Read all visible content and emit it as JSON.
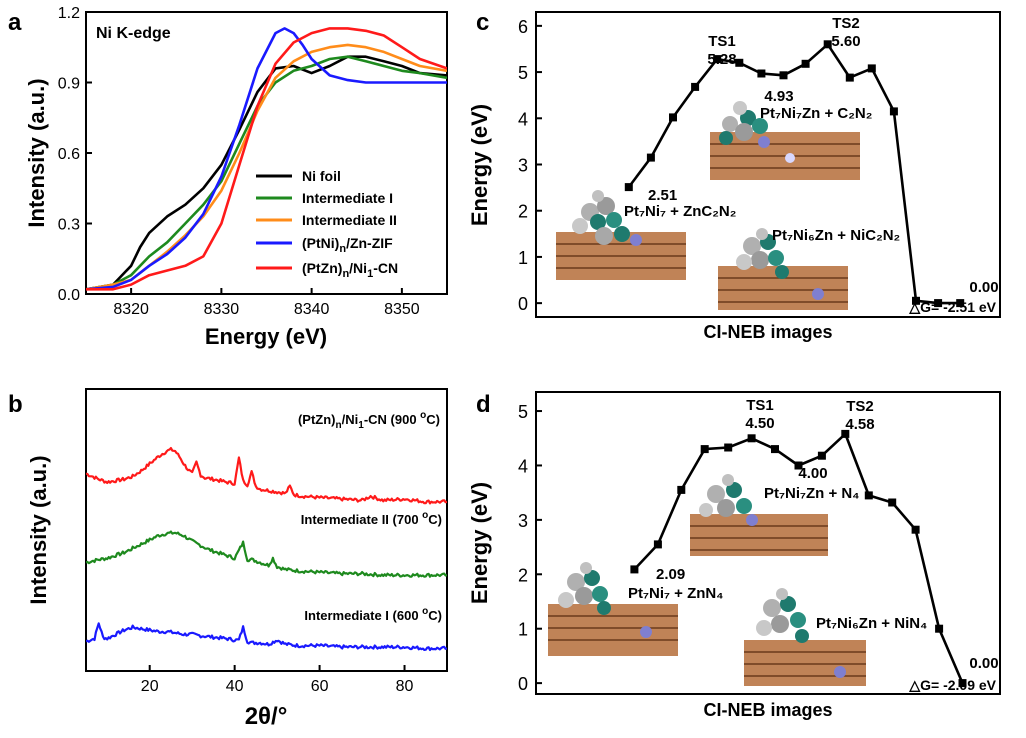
{
  "chart_data": [
    {
      "id": "a",
      "panel": "a",
      "type": "line",
      "annotation": "Ni K-edge",
      "xlabel": "Energy (eV)",
      "ylabel": "Intensity (a.u.)",
      "xlim": [
        8315,
        8355
      ],
      "ylim": [
        0,
        1.2
      ],
      "xticks": [
        "8320",
        "8330",
        "8340",
        "8350"
      ],
      "yticks": [
        "0.0",
        "0.3",
        "0.6",
        "0.9",
        "1.2"
      ],
      "legend_position": "bottom-right",
      "series": [
        {
          "name": "Ni foil",
          "color": "#000000",
          "x": [
            8315,
            8318,
            8320,
            8321,
            8322,
            8324,
            8326,
            8328,
            8330,
            8332,
            8334,
            8336,
            8338,
            8340,
            8342,
            8344,
            8346,
            8348,
            8350,
            8352,
            8355
          ],
          "y": [
            0.02,
            0.04,
            0.12,
            0.2,
            0.26,
            0.33,
            0.38,
            0.45,
            0.55,
            0.7,
            0.86,
            0.96,
            0.97,
            0.94,
            0.97,
            1.01,
            1.01,
            0.99,
            0.97,
            0.94,
            0.93
          ]
        },
        {
          "name": "Intermediate I",
          "color": "#1e8a1e",
          "x": [
            8315,
            8318,
            8320,
            8322,
            8324,
            8326,
            8328,
            8330,
            8332,
            8334,
            8336,
            8338,
            8340,
            8342,
            8344,
            8346,
            8348,
            8350,
            8352,
            8355
          ],
          "y": [
            0.02,
            0.04,
            0.08,
            0.16,
            0.22,
            0.3,
            0.38,
            0.48,
            0.64,
            0.8,
            0.9,
            0.95,
            0.97,
            1.0,
            1.01,
            0.99,
            0.97,
            0.95,
            0.94,
            0.92
          ]
        },
        {
          "name": "Intermediate II",
          "color": "#ff8c1a",
          "x": [
            8315,
            8318,
            8320,
            8322,
            8324,
            8326,
            8328,
            8330,
            8332,
            8334,
            8336,
            8338,
            8340,
            8342,
            8344,
            8346,
            8348,
            8350,
            8352,
            8355
          ],
          "y": [
            0.02,
            0.04,
            0.06,
            0.12,
            0.18,
            0.25,
            0.33,
            0.44,
            0.6,
            0.78,
            0.92,
            0.99,
            1.03,
            1.05,
            1.06,
            1.05,
            1.03,
            1.0,
            0.97,
            0.95
          ]
        },
        {
          "name": "(PtNi)n/Zn-ZIF",
          "color": "#1a1aff",
          "x": [
            8315,
            8318,
            8320,
            8322,
            8324,
            8326,
            8328,
            8330,
            8332,
            8334,
            8336,
            8337,
            8338,
            8339,
            8340,
            8342,
            8344,
            8346,
            8348,
            8350,
            8352,
            8355
          ],
          "y": [
            0.02,
            0.03,
            0.06,
            0.12,
            0.17,
            0.24,
            0.34,
            0.5,
            0.72,
            0.96,
            1.11,
            1.13,
            1.11,
            1.06,
            1.0,
            0.93,
            0.91,
            0.9,
            0.9,
            0.9,
            0.9,
            0.9
          ]
        },
        {
          "name": "(PtZn)n/Ni1-CN",
          "color": "#ff1a1a",
          "x": [
            8315,
            8318,
            8320,
            8322,
            8324,
            8326,
            8328,
            8330,
            8332,
            8334,
            8336,
            8338,
            8340,
            8342,
            8344,
            8346,
            8348,
            8350,
            8352,
            8355
          ],
          "y": [
            0.02,
            0.02,
            0.04,
            0.08,
            0.1,
            0.12,
            0.16,
            0.3,
            0.55,
            0.8,
            0.98,
            1.07,
            1.11,
            1.13,
            1.13,
            1.12,
            1.1,
            1.05,
            1.0,
            0.96
          ]
        }
      ]
    },
    {
      "id": "b",
      "panel": "b",
      "type": "line",
      "xlabel": "2θ/°",
      "ylabel": "Intensity (a.u.)",
      "xlim": [
        5,
        90
      ],
      "xticks": [
        "20",
        "40",
        "60",
        "80"
      ],
      "ylim": [
        0,
        10
      ],
      "series": [
        {
          "name": "(PtZn)n/Ni1-CN (900 °C)",
          "color": "#ff1a1a",
          "x": [
            5,
            8,
            10,
            12,
            14,
            16,
            18,
            20,
            22,
            24,
            25,
            26,
            27,
            28,
            29,
            30,
            31,
            32,
            33,
            35,
            38,
            40,
            41,
            42,
            43,
            44,
            45,
            46,
            48,
            50,
            52,
            53,
            54,
            56,
            60,
            65,
            70,
            72,
            75,
            80,
            85,
            90
          ],
          "y": [
            7.0,
            6.8,
            6.7,
            6.75,
            6.8,
            6.9,
            7.1,
            7.35,
            7.6,
            7.8,
            7.85,
            7.8,
            7.6,
            7.35,
            7.15,
            7.0,
            7.4,
            6.95,
            6.85,
            6.8,
            6.7,
            6.65,
            7.55,
            6.75,
            6.6,
            7.05,
            6.55,
            6.45,
            6.4,
            6.35,
            6.3,
            6.55,
            6.25,
            6.2,
            6.15,
            6.1,
            6.05,
            6.2,
            6.05,
            6.1,
            6.0,
            6.0
          ]
        },
        {
          "name": "Intermediate II (700 °C)",
          "color": "#1e8a1e",
          "x": [
            5,
            8,
            10,
            12,
            14,
            16,
            18,
            20,
            22,
            24,
            26,
            28,
            30,
            32,
            34,
            36,
            38,
            40,
            42,
            43,
            44,
            46,
            48,
            49,
            50,
            52,
            55,
            60,
            65,
            70,
            75,
            80,
            85,
            90
          ],
          "y": [
            3.85,
            3.95,
            4.0,
            4.1,
            4.2,
            4.35,
            4.5,
            4.65,
            4.8,
            4.88,
            4.9,
            4.8,
            4.6,
            4.45,
            4.3,
            4.2,
            4.1,
            4.0,
            4.55,
            3.95,
            3.95,
            3.85,
            3.75,
            4.0,
            3.7,
            3.6,
            3.55,
            3.5,
            3.45,
            3.45,
            3.4,
            3.4,
            3.4,
            3.4
          ]
        },
        {
          "name": "Intermediate I (600 °C)",
          "color": "#1a1aff",
          "x": [
            5,
            7,
            8,
            9,
            10,
            12,
            14,
            16,
            18,
            20,
            22,
            24,
            26,
            28,
            30,
            32,
            35,
            38,
            40,
            41,
            42,
            43,
            44,
            46,
            48,
            50,
            52,
            55,
            60,
            65,
            70,
            75,
            80,
            85,
            90
          ],
          "y": [
            1.05,
            1.15,
            1.7,
            1.2,
            1.15,
            1.3,
            1.45,
            1.55,
            1.5,
            1.45,
            1.4,
            1.4,
            1.35,
            1.3,
            1.3,
            1.25,
            1.2,
            1.15,
            1.1,
            1.1,
            1.55,
            1.05,
            1.0,
            1.0,
            0.95,
            1.1,
            0.95,
            0.9,
            0.9,
            0.85,
            0.85,
            0.85,
            0.85,
            0.8,
            0.8
          ]
        }
      ]
    },
    {
      "id": "c",
      "panel": "c",
      "type": "line",
      "xlabel": "CI-NEB images",
      "ylabel": "Energy (eV)",
      "ylim": [
        -0.3,
        6.3
      ],
      "yticks": [
        "0",
        "1",
        "2",
        "3",
        "4",
        "5",
        "6"
      ],
      "x": [
        1,
        2,
        3,
        4,
        5,
        6,
        7,
        8,
        9,
        10,
        11,
        12,
        13,
        14,
        15,
        16
      ],
      "y": [
        2.51,
        3.15,
        4.02,
        4.68,
        5.28,
        5.2,
        4.97,
        4.93,
        5.18,
        5.6,
        4.88,
        5.08,
        4.15,
        0.05,
        0.0,
        0.0
      ],
      "labels": {
        "start": "2.51",
        "ts1_name": "TS1",
        "ts1_value": "5.28",
        "mid": "4.93",
        "ts2_name": "TS2",
        "ts2_value": "5.60",
        "end": "0.00"
      },
      "inset_labels": {
        "left": "Pt₇Ni₇ + ZnC₂N₂",
        "upper": "Pt₇Ni₇Zn + C₂N₂",
        "right": "Pt₇Ni₆Zn + NiC₂N₂"
      },
      "delta_g": "△G= -2.51 eV"
    },
    {
      "id": "d",
      "panel": "d",
      "type": "line",
      "xlabel": "CI-NEB images",
      "ylabel": "Energy (eV)",
      "ylim": [
        -0.2,
        5.35
      ],
      "yticks": [
        "0",
        "1",
        "2",
        "3",
        "4",
        "5"
      ],
      "x": [
        1,
        2,
        3,
        4,
        5,
        6,
        7,
        8,
        9,
        10,
        11,
        12,
        13,
        14,
        15
      ],
      "y": [
        2.09,
        2.55,
        3.55,
        4.3,
        4.33,
        4.5,
        4.3,
        4.0,
        4.18,
        4.58,
        3.45,
        3.32,
        2.82,
        1.0,
        0.0
      ],
      "labels": {
        "start": "2.09",
        "ts1_name": "TS1",
        "ts1_value": "4.50",
        "mid": "4.00",
        "ts2_name": "TS2",
        "ts2_value": "4.58",
        "end": "0.00"
      },
      "inset_labels": {
        "left": "Pt₇Ni₇ + ZnN₄",
        "upper": "Pt₇Ni₇Zn + N₄",
        "right": "Pt₇Ni₆Zn + NiN₄"
      },
      "delta_g": "△G= -2.09 eV"
    }
  ],
  "panels": {
    "a": {
      "letter": "a"
    },
    "b": {
      "letter": "b"
    },
    "c": {
      "letter": "c"
    },
    "d": {
      "letter": "d"
    }
  },
  "legend_a": [
    "Ni foil",
    "Intermediate I",
    "Intermediate II",
    "(PtNi)",
    "/Zn-ZIF",
    "(PtZn)",
    "/Ni",
    "-CN"
  ],
  "legend_sub": {
    "n": "n",
    "one": "1"
  },
  "b_labels": {
    "red_pre": "(PtZn)",
    "red_sub_n": "n",
    "red_mid": "/Ni",
    "red_sub_1": "1",
    "red_post": "-CN (900 ",
    "red_deg": "o",
    "red_end": "C)",
    "green_pre": "Intermediate II (700 ",
    "green_deg": "o",
    "green_end": "C)",
    "blue_pre": "Intermediate I (600 ",
    "blue_deg": "o",
    "blue_end": "C)"
  },
  "colors": {
    "black": "#000000",
    "green": "#1e8a1e",
    "orange": "#ff8c1a",
    "blue": "#1a1aff",
    "red": "#ff1a1a"
  }
}
